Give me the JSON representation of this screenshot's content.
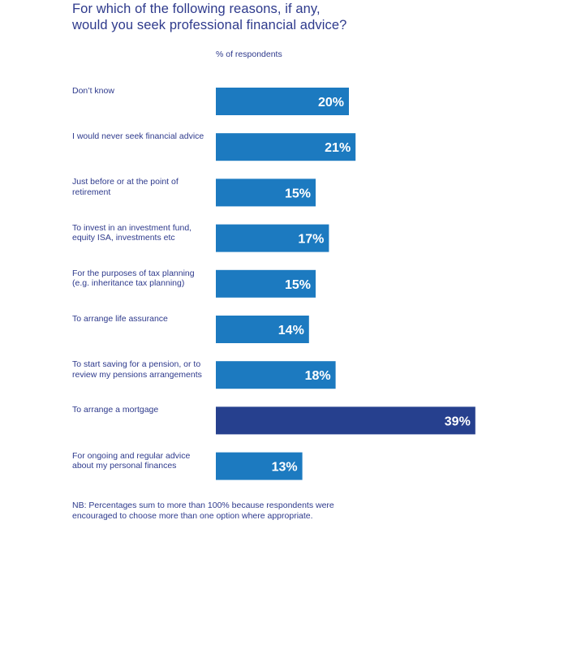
{
  "title_lines": [
    "For which of the following reasons, if any,",
    "would you seek professional financial advice?"
  ],
  "unit_label": "% of respondents",
  "note_lines": [
    "NB: Percentages sum to more than 100% because respondents were",
    "encouraged to choose more than one option where appropriate."
  ],
  "colors": {
    "bar": "#1c7ac0",
    "highlight_bar": "#26408e",
    "text": "#2e3a8c",
    "bar_label": "#ffffff"
  },
  "chart_data": {
    "type": "bar",
    "orientation": "horizontal",
    "categories": [
      [
        "Don’t know"
      ],
      [
        "I would never seek financial advice"
      ],
      [
        "Just before or at the point of",
        "retirement"
      ],
      [
        "To invest in an investment fund,",
        "equity ISA, investments etc"
      ],
      [
        "For the purposes of tax planning",
        "(e.g. inheritance tax planning)"
      ],
      [
        "To arrange life assurance"
      ],
      [
        "To start saving for a pension, or to",
        "review my pensions arrangements"
      ],
      [
        "To arrange a mortgage"
      ],
      [
        "For ongoing and regular advice",
        "about my personal finances"
      ]
    ],
    "values": [
      20,
      21,
      15,
      17,
      15,
      14,
      18,
      39,
      13
    ],
    "value_labels": [
      "20%",
      "21%",
      "15%",
      "17%",
      "15%",
      "14%",
      "18%",
      "39%",
      "13%"
    ],
    "highlight_index": 7,
    "xlim": [
      0,
      40
    ],
    "grid": false,
    "legend": "none"
  }
}
